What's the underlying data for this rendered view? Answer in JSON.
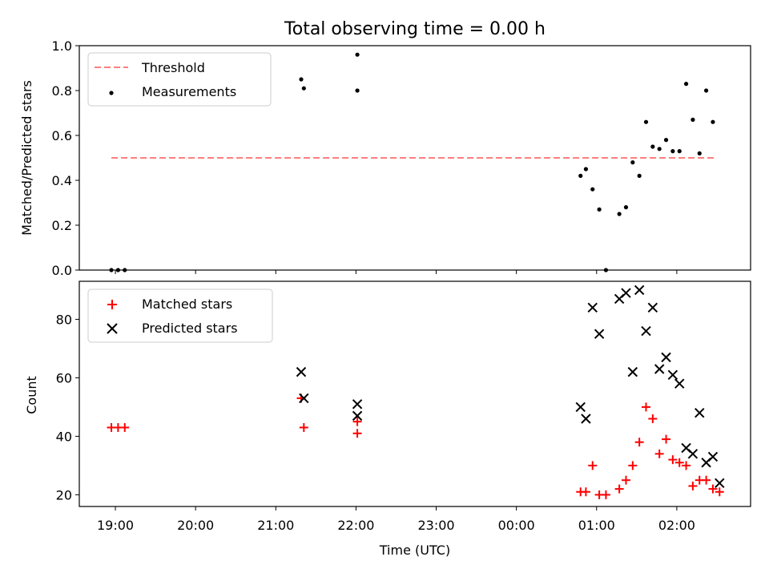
{
  "title": "Total observing time = 0.00 h",
  "colors": {
    "threshold": "#ff7f7f",
    "measurement": "#000000",
    "matched": "#ff0000",
    "predicted": "#000000"
  },
  "chart_data": [
    {
      "type": "scatter",
      "ylabel": "Matched/Predicted stars",
      "ylim": [
        0,
        1.0
      ],
      "xlim_hours": [
        18.55,
        26.92
      ],
      "yticks": [
        "0.0",
        "0.2",
        "0.4",
        "0.6",
        "0.8",
        "1.0"
      ],
      "legend": {
        "placement": "top-left",
        "entries": [
          "Threshold",
          "Measurements"
        ]
      },
      "threshold": {
        "name": "Threshold",
        "value": 0.5,
        "x_range": [
          "18:57",
          "26:30"
        ],
        "style": "dashed"
      },
      "series": [
        {
          "name": "Measurements",
          "marker": "dot",
          "x": [
            "18:57",
            "19:02",
            "19:07",
            "21:19",
            "21:21",
            "22:01",
            "22:01",
            "24:48",
            "24:52",
            "24:57",
            "25:02",
            "25:07",
            "25:17",
            "25:22",
            "25:27",
            "25:32",
            "25:37",
            "25:42",
            "25:47",
            "25:52",
            "25:57",
            "26:02",
            "26:07",
            "26:12",
            "26:17",
            "26:22",
            "26:27"
          ],
          "y": [
            0.0,
            0.0,
            0.0,
            0.85,
            0.81,
            0.96,
            0.8,
            0.42,
            0.45,
            0.36,
            0.27,
            0.0,
            0.25,
            0.28,
            0.48,
            0.42,
            0.66,
            0.55,
            0.54,
            0.58,
            0.53,
            0.53,
            0.83,
            0.67,
            0.52,
            0.8,
            0.66
          ]
        }
      ]
    },
    {
      "type": "scatter",
      "xlabel": "Time (UTC)",
      "ylabel": "Count",
      "ylim": [
        16,
        93
      ],
      "xlim_hours": [
        18.55,
        26.92
      ],
      "xticks": [
        "19:00",
        "20:00",
        "21:00",
        "22:00",
        "23:00",
        "00:00",
        "01:00",
        "02:00"
      ],
      "yticks": [
        "20",
        "40",
        "60",
        "80"
      ],
      "legend": {
        "placement": "top-left",
        "entries": [
          "Matched stars",
          "Predicted stars"
        ]
      },
      "series": [
        {
          "name": "Matched stars",
          "marker": "plus",
          "x": [
            "18:57",
            "19:02",
            "19:07",
            "21:19",
            "21:21",
            "22:01",
            "22:01",
            "24:48",
            "24:52",
            "24:57",
            "25:02",
            "25:07",
            "25:17",
            "25:22",
            "25:27",
            "25:32",
            "25:37",
            "25:42",
            "25:47",
            "25:52",
            "25:57",
            "26:02",
            "26:07",
            "26:12",
            "26:17",
            "26:22",
            "26:27",
            "26:32"
          ],
          "y": [
            43,
            43,
            43,
            53,
            43,
            45,
            41,
            21,
            21,
            30,
            20,
            20,
            22,
            25,
            30,
            38,
            50,
            46,
            34,
            39,
            32,
            31,
            30,
            23,
            25,
            25,
            22,
            21
          ]
        },
        {
          "name": "Predicted stars",
          "marker": "x",
          "x": [
            "21:19",
            "21:21",
            "22:01",
            "22:01",
            "24:48",
            "24:52",
            "24:57",
            "25:02",
            "25:17",
            "25:22",
            "25:27",
            "25:32",
            "25:37",
            "25:42",
            "25:47",
            "25:52",
            "25:57",
            "26:02",
            "26:07",
            "26:12",
            "26:17",
            "26:22",
            "26:27",
            "26:32"
          ],
          "y": [
            62,
            53,
            51,
            47,
            50,
            46,
            84,
            75,
            87,
            89,
            62,
            90,
            76,
            84,
            63,
            67,
            61,
            58,
            36,
            34,
            48,
            31,
            33,
            24
          ]
        }
      ]
    }
  ]
}
